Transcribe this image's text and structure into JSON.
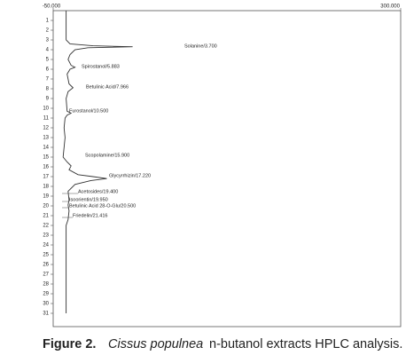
{
  "chart_data": {
    "type": "line",
    "xlim": [
      -50,
      300
    ],
    "xticks": [
      {
        "value": -50,
        "label": "-50.000"
      },
      {
        "value": 300,
        "label": "300.000"
      }
    ],
    "ylim": [
      0,
      32
    ],
    "yticks": [
      1,
      2,
      3,
      4,
      5,
      6,
      7,
      8,
      9,
      10,
      11,
      12,
      13,
      14,
      15,
      16,
      17,
      18,
      19,
      20,
      21,
      22,
      23,
      24,
      25,
      26,
      27,
      28,
      29,
      30,
      31
    ],
    "series": [
      {
        "color": "#333333",
        "x": [
          0,
          3.0,
          3.4,
          3.6,
          3.7,
          3.8,
          4.0,
          4.5,
          5.0,
          5.6,
          5.8,
          6.0,
          6.5,
          7.5,
          7.9,
          8.3,
          9,
          10.3,
          10.5,
          10.7,
          11,
          12,
          13,
          14,
          15,
          15.5,
          15.9,
          16.3,
          16.8,
          17.0,
          17.2,
          17.4,
          17.8,
          18.5,
          19.4,
          19.9,
          20.5,
          21.4,
          22,
          25,
          28,
          31
        ],
        "values": [
          -37,
          -37,
          -33,
          -10,
          30,
          -15,
          -28,
          -33,
          -35,
          -32,
          -28,
          -33,
          -36,
          -34,
          -30,
          -35,
          -37,
          -36,
          -32,
          -36,
          -38,
          -39,
          -38,
          -39,
          -40,
          -36,
          -32,
          -34,
          -25,
          -10,
          4,
          -12,
          -28,
          -35,
          -34,
          -35,
          -34,
          -35,
          -37,
          -37,
          -37,
          -37
        ]
      }
    ],
    "annotations": [
      "Solanine/3.700",
      "Spirostanol/5.883",
      "Betulinic Acid/7.966",
      "Furostanol/10.500",
      "Scopolamine/15.900",
      "Glycyrrhizin/17.220",
      "Acetosides/19.400",
      "Isoorientin/19.950",
      "Betulinic Acid 28-O-Glu/20.500",
      "Friedelin/21.416"
    ],
    "caption": {
      "label": "Figure 2.",
      "species": "Cissus populnea",
      "text": "n-butanol extracts HPLC analysis."
    }
  }
}
